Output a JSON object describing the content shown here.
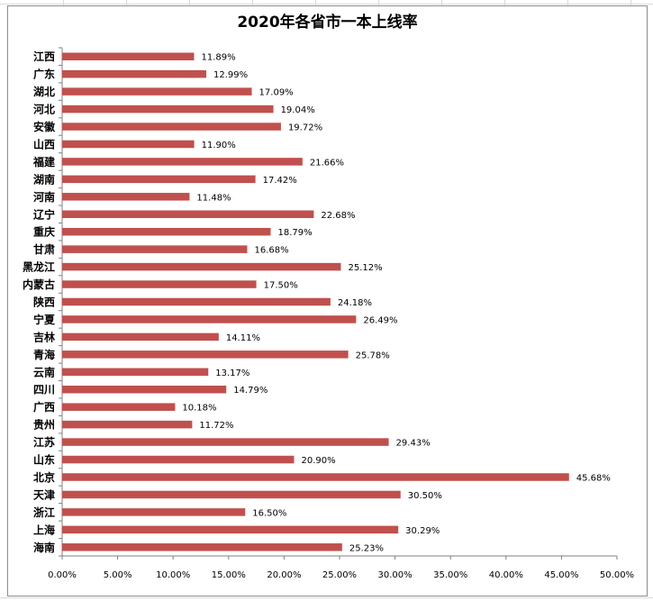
{
  "colors": {
    "bar": "#c0504d",
    "axis": "#808080",
    "grid_line": "#d0d0d0"
  },
  "chart_data": {
    "type": "bar",
    "orientation": "horizontal",
    "title": "2020年各省市一本上线率",
    "categories": [
      "江西",
      "广东",
      "湖北",
      "河北",
      "安徽",
      "山西",
      "福建",
      "湖南",
      "河南",
      "辽宁",
      "重庆",
      "甘肃",
      "黑龙江",
      "内蒙古",
      "陕西",
      "宁夏",
      "吉林",
      "青海",
      "云南",
      "四川",
      "广西",
      "贵州",
      "江苏",
      "山东",
      "北京",
      "天津",
      "浙江",
      "上海",
      "海南"
    ],
    "values": [
      11.89,
      12.99,
      17.09,
      19.04,
      19.72,
      11.9,
      21.66,
      17.42,
      11.48,
      22.68,
      18.79,
      16.68,
      25.12,
      17.5,
      24.18,
      26.49,
      14.11,
      25.78,
      13.17,
      14.79,
      10.18,
      11.72,
      29.43,
      20.9,
      45.68,
      30.5,
      16.5,
      30.29,
      25.23
    ],
    "value_labels": [
      "11.89%",
      "12.99%",
      "17.09%",
      "19.04%",
      "19.72%",
      "11.90%",
      "21.66%",
      "17.42%",
      "11.48%",
      "22.68%",
      "18.79%",
      "16.68%",
      "25.12%",
      "17.50%",
      "24.18%",
      "26.49%",
      "14.11%",
      "25.78%",
      "13.17%",
      "14.79%",
      "10.18%",
      "11.72%",
      "29.43%",
      "20.90%",
      "45.68%",
      "30.50%",
      "16.50%",
      "30.29%",
      "25.23%"
    ],
    "x_ticks": [
      "0.00%",
      "5.00%",
      "10.00%",
      "15.00%",
      "20.00%",
      "25.00%",
      "30.00%",
      "35.00%",
      "40.00%",
      "45.00%",
      "50.00%"
    ],
    "xlim": [
      0,
      50
    ],
    "xlabel": "",
    "ylabel": "",
    "grid": false,
    "legend": "none"
  }
}
